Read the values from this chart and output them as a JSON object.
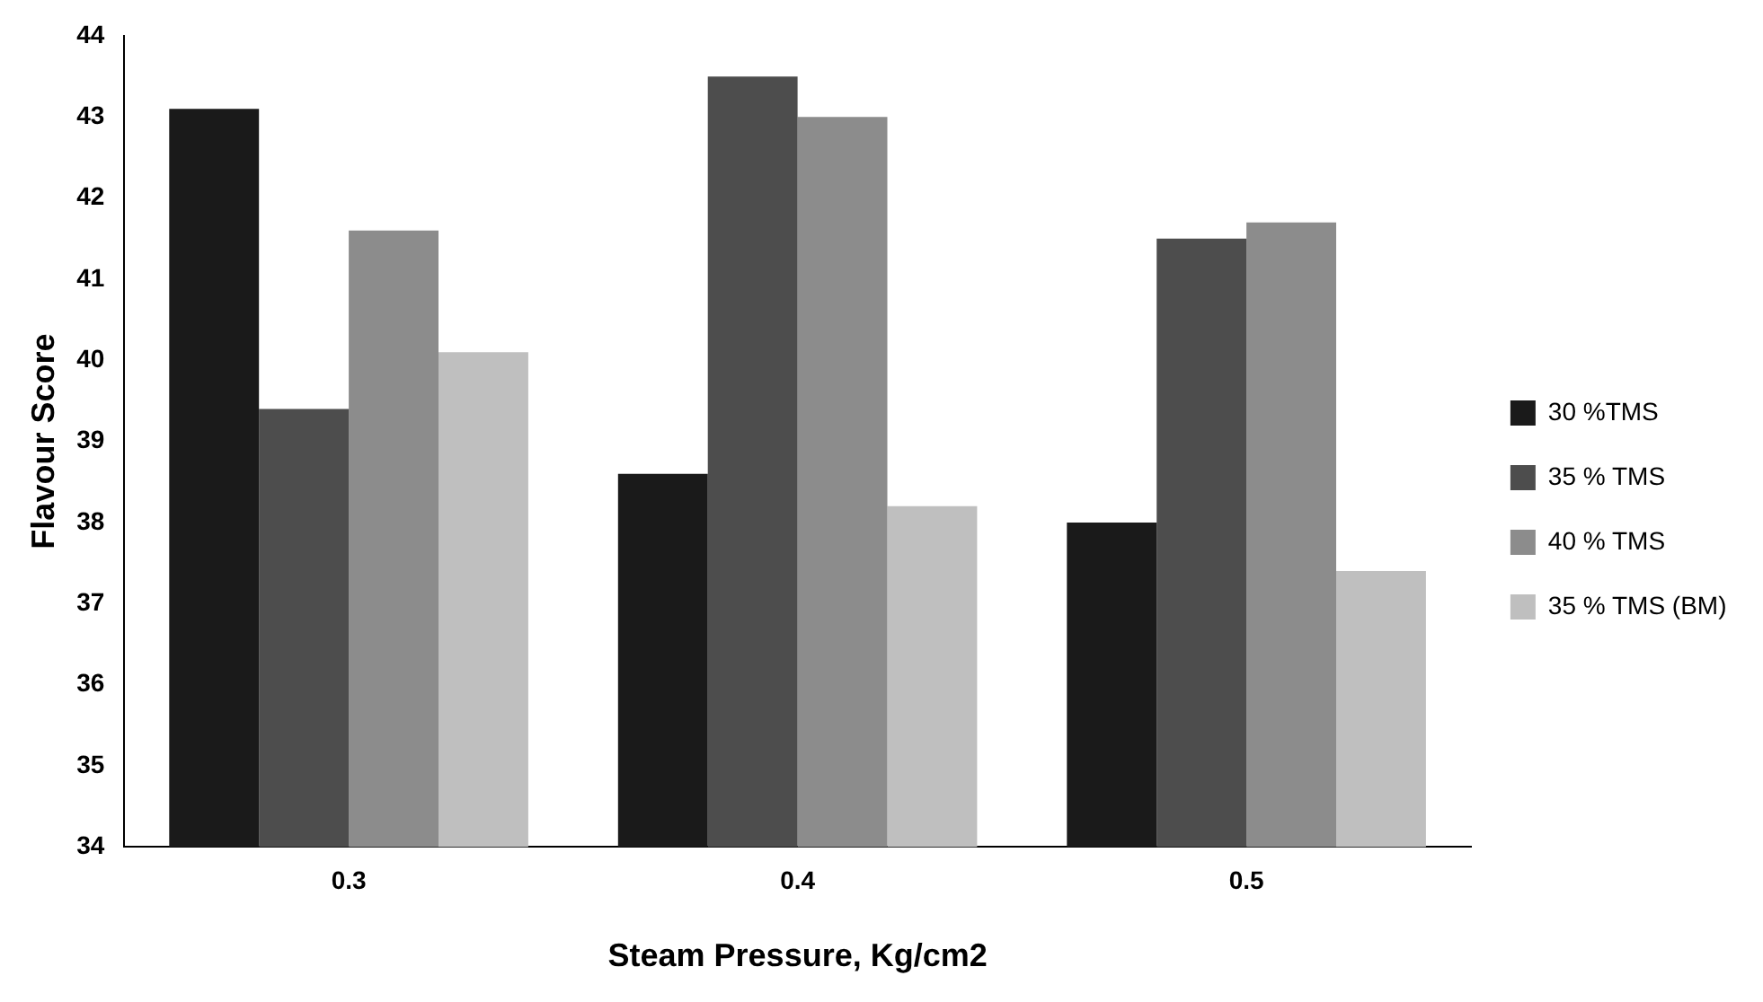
{
  "chart_data": {
    "type": "bar",
    "xlabel": "Steam Pressure, Kg/cm2",
    "ylabel": "Flavour Score",
    "categories": [
      "0.3",
      "0.4",
      "0.5"
    ],
    "series": [
      {
        "name": "30 %TMS",
        "color": "#1a1a1a",
        "values": [
          43.1,
          38.6,
          38.0
        ]
      },
      {
        "name": "35 % TMS",
        "color": "#4d4d4d",
        "values": [
          39.4,
          43.5,
          41.5
        ]
      },
      {
        "name": "40 % TMS",
        "color": "#8c8c8c",
        "values": [
          41.6,
          43.0,
          41.7
        ]
      },
      {
        "name": "35 % TMS (BM)",
        "color": "#bfbfbf",
        "values": [
          40.1,
          38.2,
          37.4
        ]
      }
    ],
    "ylim": [
      34,
      44
    ],
    "yticks": [
      34,
      35,
      36,
      37,
      38,
      39,
      40,
      41,
      42,
      43,
      44
    ],
    "grid": false,
    "legend": "right"
  }
}
